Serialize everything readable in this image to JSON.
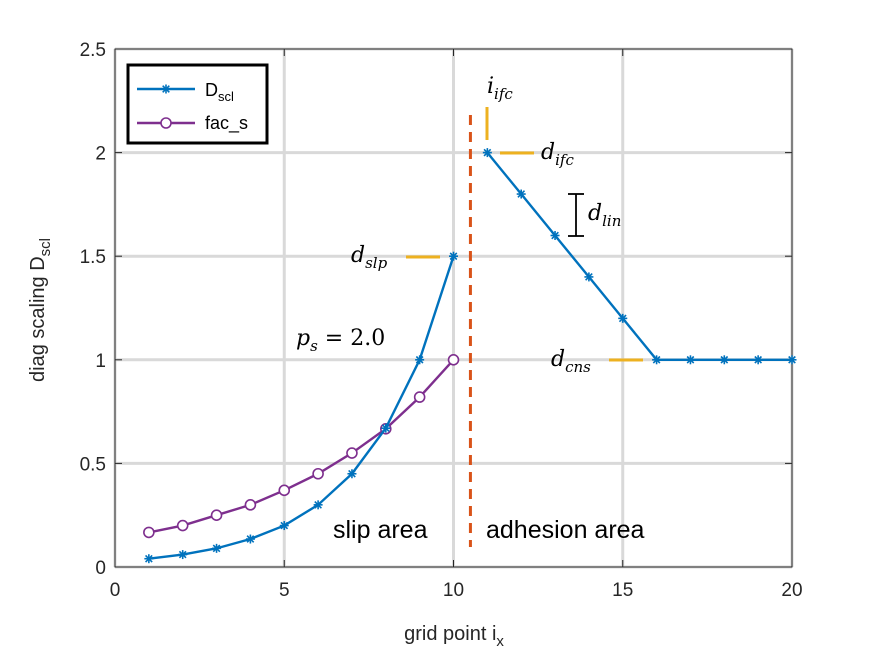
{
  "chart_data": {
    "type": "line",
    "xlabel": "grid point i",
    "xlabel_sub": "x",
    "ylabel": "diag scaling D",
    "ylabel_sub": "scl",
    "xlim": [
      0,
      20
    ],
    "ylim": [
      0,
      2.5
    ],
    "xticks": [
      0,
      5,
      10,
      15,
      20
    ],
    "yticks": [
      0,
      0.5,
      1,
      1.5,
      2,
      2.5
    ],
    "xtick_labels": [
      "0",
      "5",
      "10",
      "15",
      "20"
    ],
    "ytick_labels": [
      "0",
      "0.5",
      "1",
      "1.5",
      "2",
      "2.5"
    ],
    "grid": true,
    "legend_position": "top-left",
    "series": [
      {
        "name": "D",
        "name_sub": "scl",
        "color": "#0072BD",
        "marker": "asterisk",
        "x": [
          1,
          2,
          3,
          4,
          5,
          6,
          7,
          8,
          9,
          10
        ],
        "y": [
          0.04,
          0.06,
          0.09,
          0.135,
          0.2,
          0.3,
          0.45,
          0.67,
          1.0,
          1.5
        ]
      },
      {
        "name": "D",
        "name_sub": "scl",
        "color": "#0072BD",
        "marker": "asterisk",
        "in_legend": false,
        "x": [
          11,
          12,
          13,
          14,
          15,
          16,
          17,
          18,
          19,
          20
        ],
        "y": [
          2.0,
          1.8,
          1.6,
          1.4,
          1.2,
          1.0,
          1.0,
          1.0,
          1.0,
          1.0
        ]
      },
      {
        "name": "fac_s",
        "color": "#7E2F8E",
        "marker": "circle",
        "x": [
          1,
          2,
          3,
          4,
          5,
          6,
          7,
          8,
          9,
          10
        ],
        "y": [
          0.167,
          0.2,
          0.25,
          0.3,
          0.37,
          0.45,
          0.55,
          0.667,
          0.82,
          1.0
        ]
      }
    ],
    "vline": {
      "x": 10.5,
      "color": "#D95319",
      "style": "dashed"
    },
    "region_labels": [
      "slip area",
      "adhesion area"
    ],
    "annotations": [
      {
        "base": "i",
        "sub": "ifc"
      },
      {
        "base": "d",
        "sub": "ifc"
      },
      {
        "base": "d",
        "sub": "lin"
      },
      {
        "base": "d",
        "sub": "slp"
      },
      {
        "base": "d",
        "sub": "cns"
      },
      {
        "text": "p",
        "sub": "s",
        "suffix": " = 2.0"
      }
    ],
    "annotation_marker_color": "#EDB120"
  }
}
